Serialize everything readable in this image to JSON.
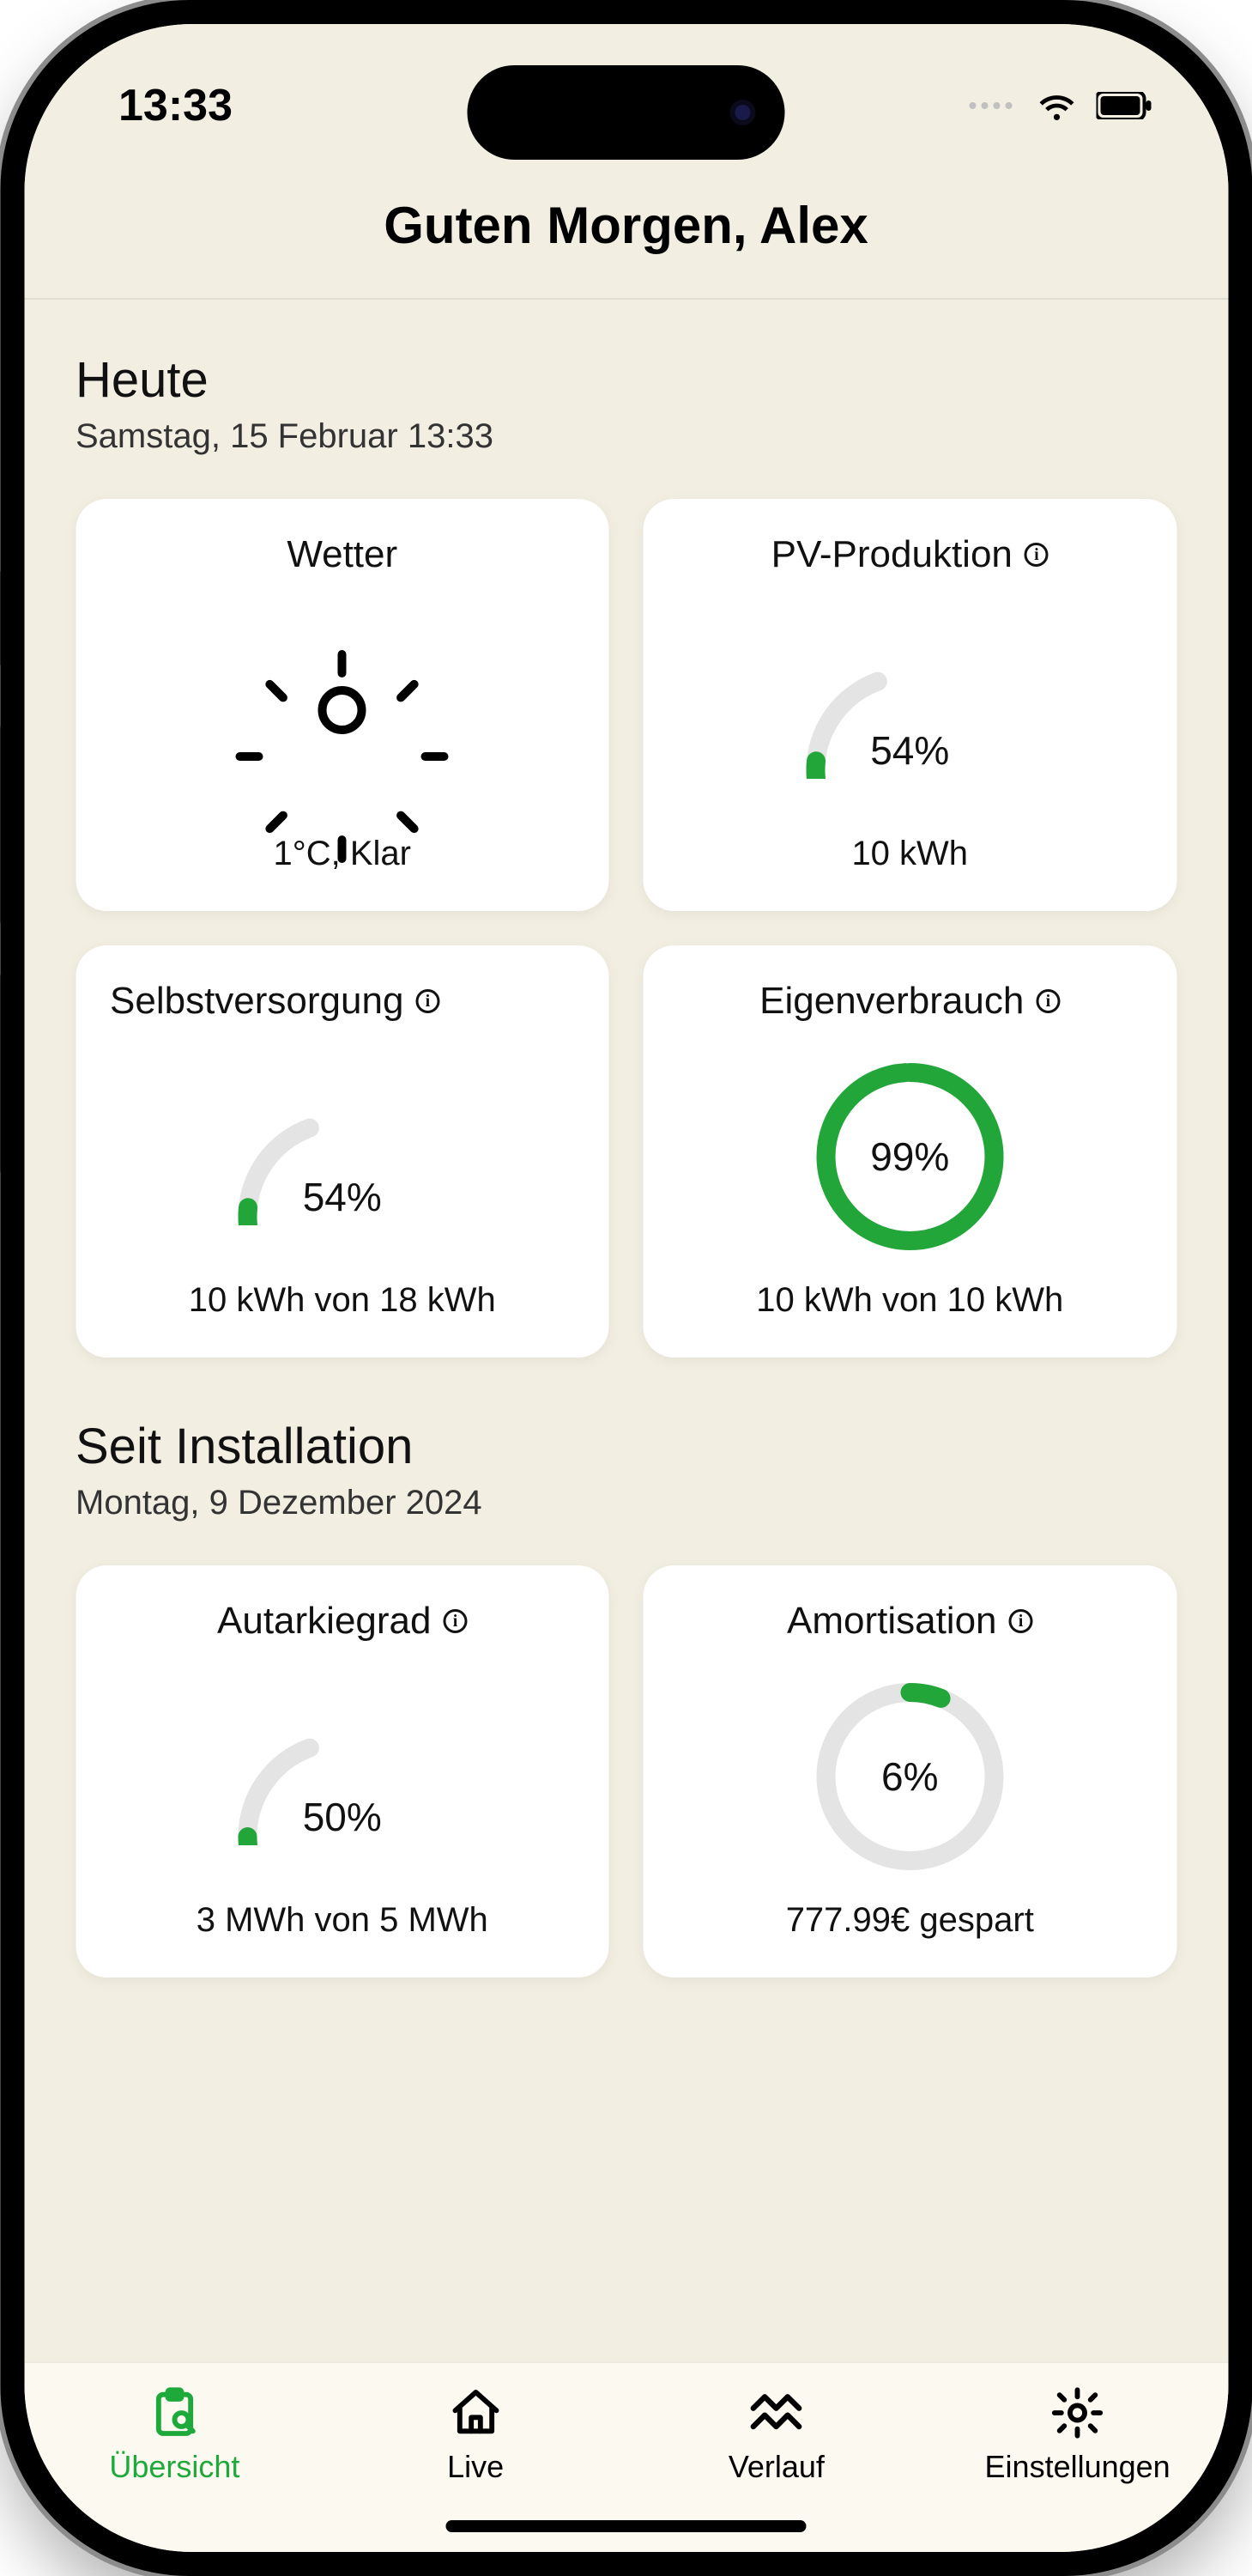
{
  "colors": {
    "screen_bg": "#f2efe2",
    "card_bg": "#ffffff",
    "text": "#111111",
    "accent": "#1ea93b",
    "gauge_fg": "#22a63a",
    "gauge_bg": "#e4e4e4",
    "tabbar_bg": "#fbf9f0"
  },
  "status": {
    "time": "13:33"
  },
  "header": {
    "greeting": "Guten Morgen, Alex"
  },
  "section_today": {
    "title": "Heute",
    "subtitle": "Samstag, 15 Februar 13:33"
  },
  "section_install": {
    "title": "Seit Installation",
    "subtitle": "Montag, 9 Dezember 2024"
  },
  "cards": {
    "weather": {
      "title": "Wetter",
      "footer": "1°C, Klar"
    },
    "pv": {
      "title": "PV-Produktion",
      "info": true,
      "percent": 54,
      "percent_label": "54%",
      "gauge_style": "semi",
      "footer": "10 kWh"
    },
    "self_supply": {
      "title": "Selbstversorgung",
      "info": true,
      "percent": 54,
      "percent_label": "54%",
      "gauge_style": "semi",
      "footer": "10 kWh von 18 kWh"
    },
    "own_use": {
      "title": "Eigenverbrauch",
      "info": true,
      "percent": 99,
      "percent_label": "99%",
      "gauge_style": "full",
      "footer": "10 kWh von 10 kWh"
    },
    "autarky": {
      "title": "Autarkiegrad",
      "info": true,
      "percent": 50,
      "percent_label": "50%",
      "gauge_style": "semi",
      "footer": "3 MWh von 5 MWh"
    },
    "amort": {
      "title": "Amortisation",
      "info": true,
      "percent": 6,
      "percent_label": "6%",
      "gauge_style": "full",
      "footer": "777.99€ gespart"
    }
  },
  "gauge": {
    "stroke_width": 22,
    "radius": 98,
    "fg_color": "#22a63a",
    "bg_color": "#e4e4e4",
    "semi_start_deg": 200,
    "semi_sweep_deg": 140
  },
  "tabs": {
    "overview": "Übersicht",
    "live": "Live",
    "history": "Verlauf",
    "settings": "Einstellungen",
    "active": "overview"
  }
}
